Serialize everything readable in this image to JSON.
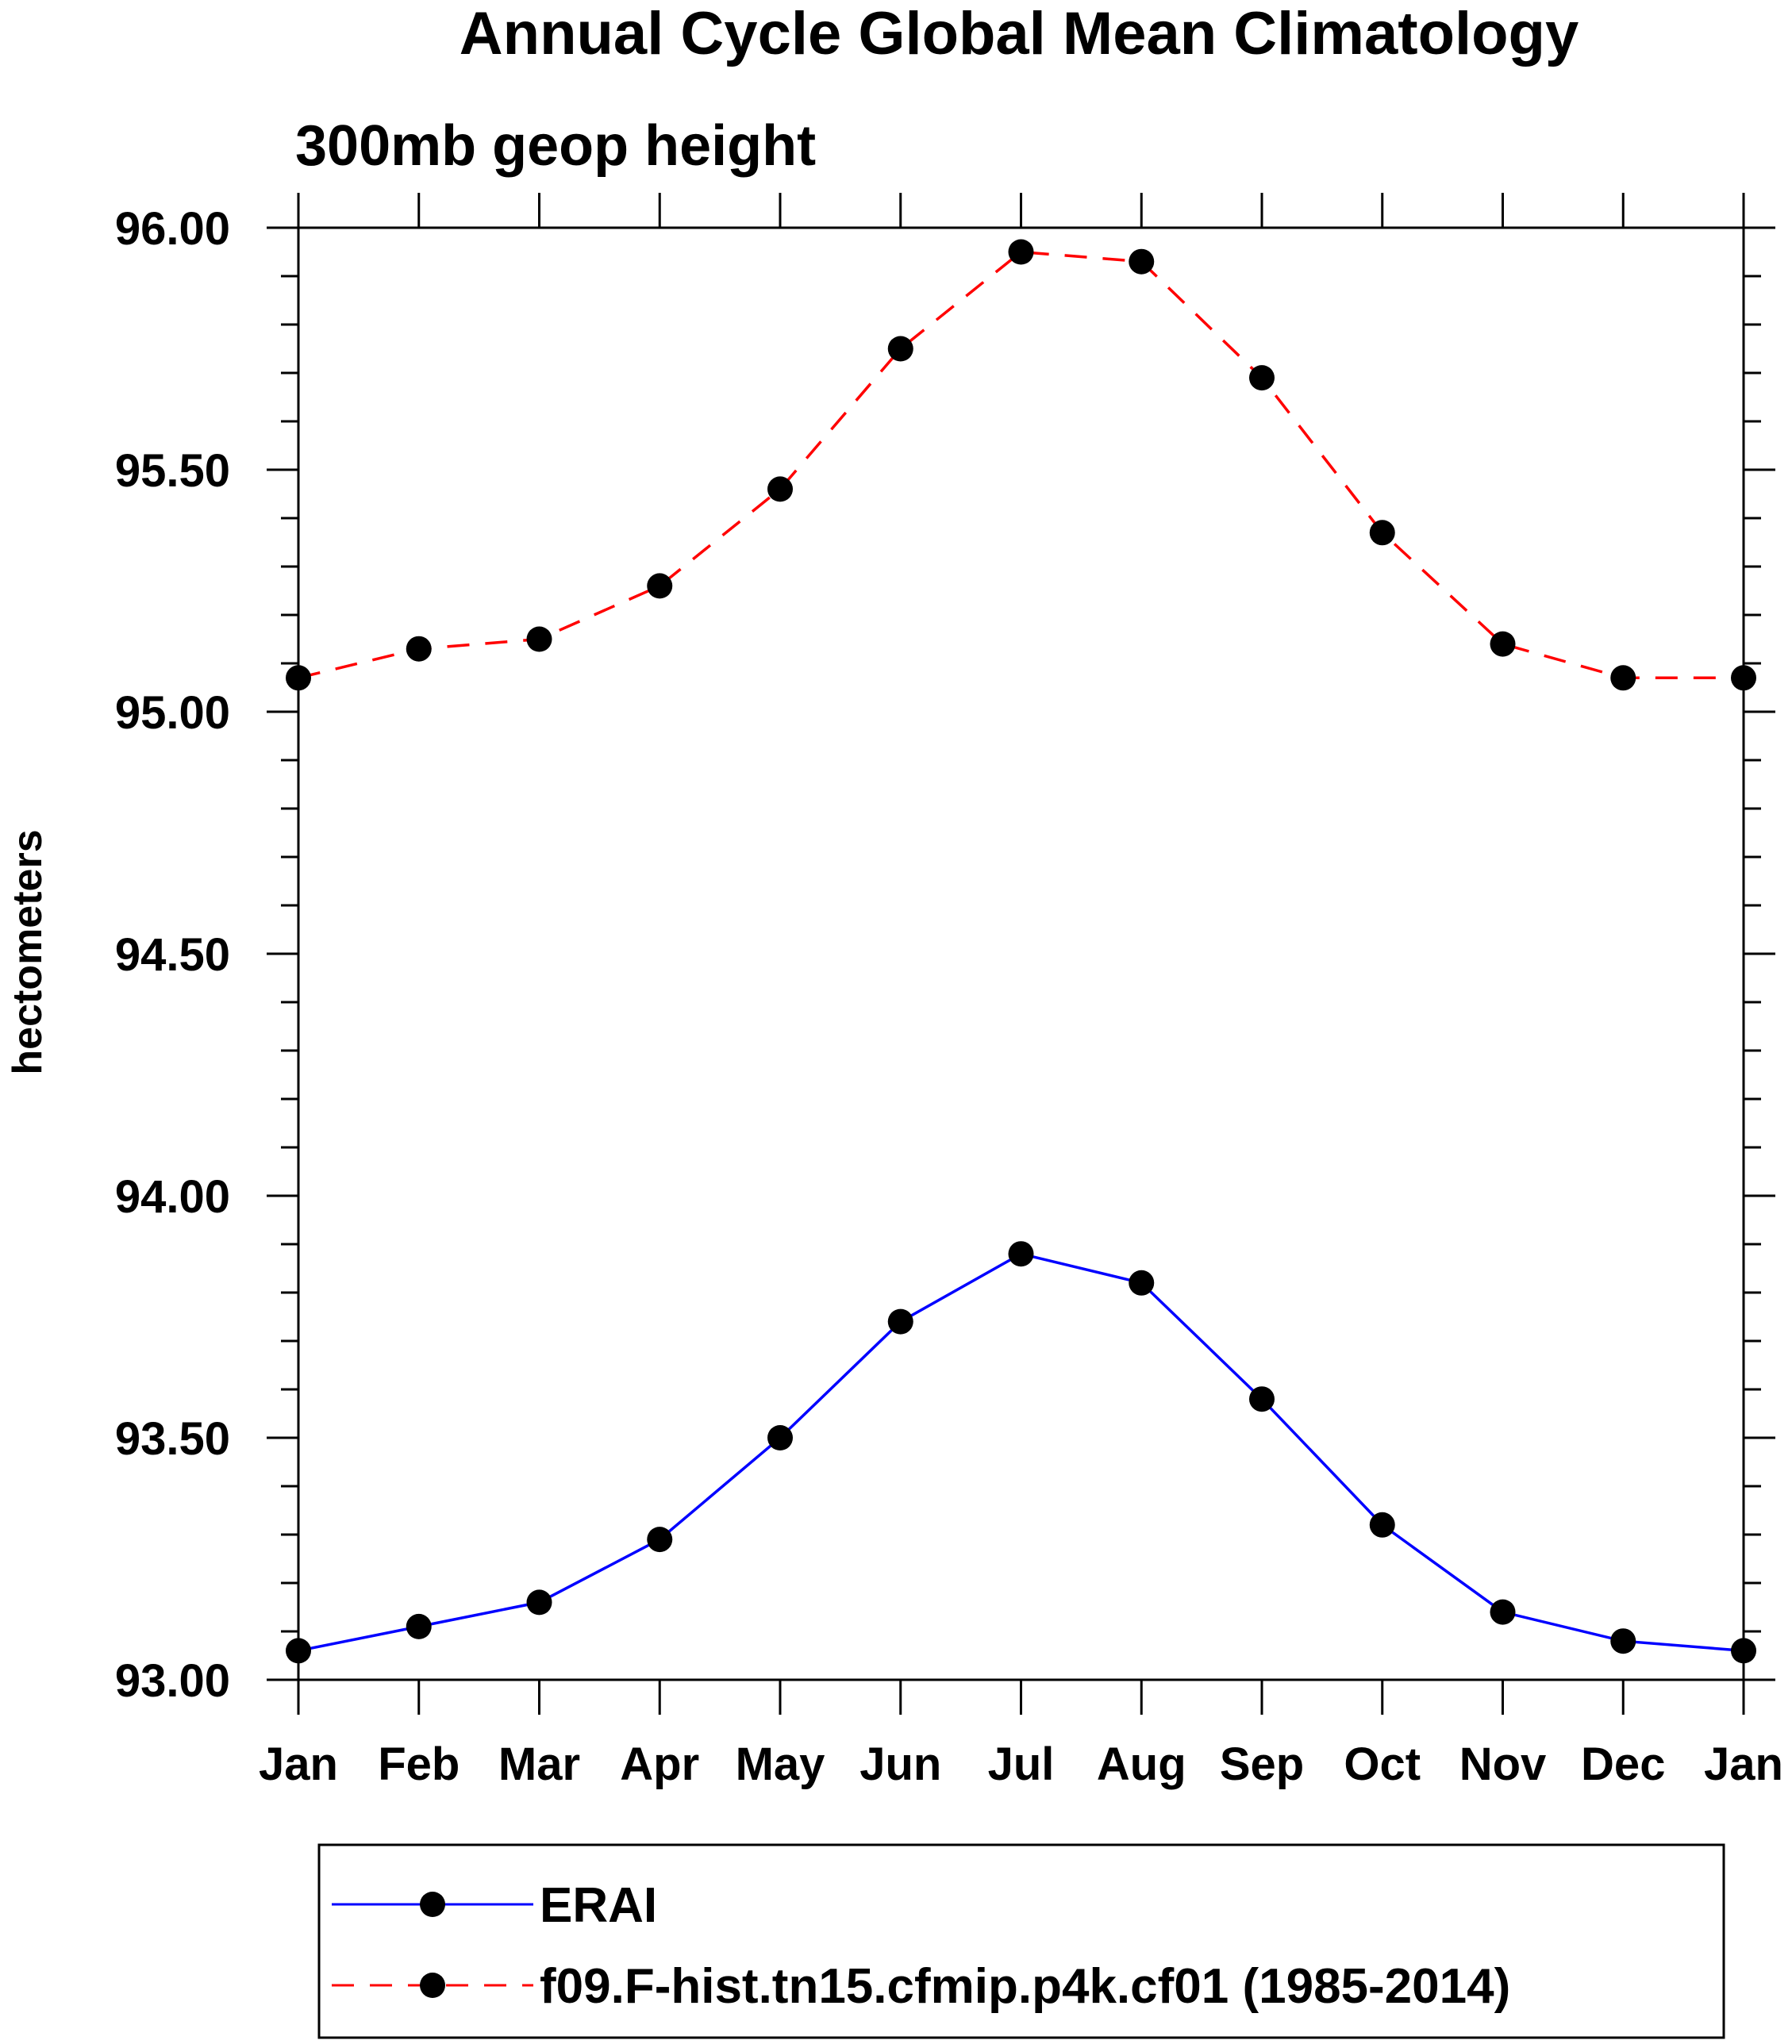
{
  "chart_data": {
    "type": "line",
    "title": "Annual Cycle Global Mean Climatology",
    "subtitle": "300mb geop height",
    "xlabel": "",
    "ylabel": "hectometers",
    "categories": [
      "Jan",
      "Feb",
      "Mar",
      "Apr",
      "May",
      "Jun",
      "Jul",
      "Aug",
      "Sep",
      "Oct",
      "Nov",
      "Dec",
      "Jan"
    ],
    "ylim": [
      93.0,
      96.0
    ],
    "yticks": [
      "93.00",
      "93.50",
      "94.00",
      "94.50",
      "95.00",
      "95.50",
      "96.00"
    ],
    "series": [
      {
        "name": "ERAI",
        "color": "#0000ff",
        "dash": "solid",
        "marker": "filled-circle",
        "values": [
          93.06,
          93.11,
          93.16,
          93.29,
          93.5,
          93.74,
          93.88,
          93.82,
          93.58,
          93.32,
          93.14,
          93.08,
          93.06
        ]
      },
      {
        "name": "f09.F-hist.tn15.cfmip.p4k.cf01 (1985-2014)",
        "color": "#ff0000",
        "dash": "dashed",
        "marker": "filled-circle",
        "values": [
          95.07,
          95.13,
          95.15,
          95.26,
          95.46,
          95.75,
          95.95,
          95.93,
          95.69,
          95.37,
          95.14,
          95.07,
          95.07
        ]
      }
    ],
    "grid": false,
    "legend_position": "bottom"
  }
}
